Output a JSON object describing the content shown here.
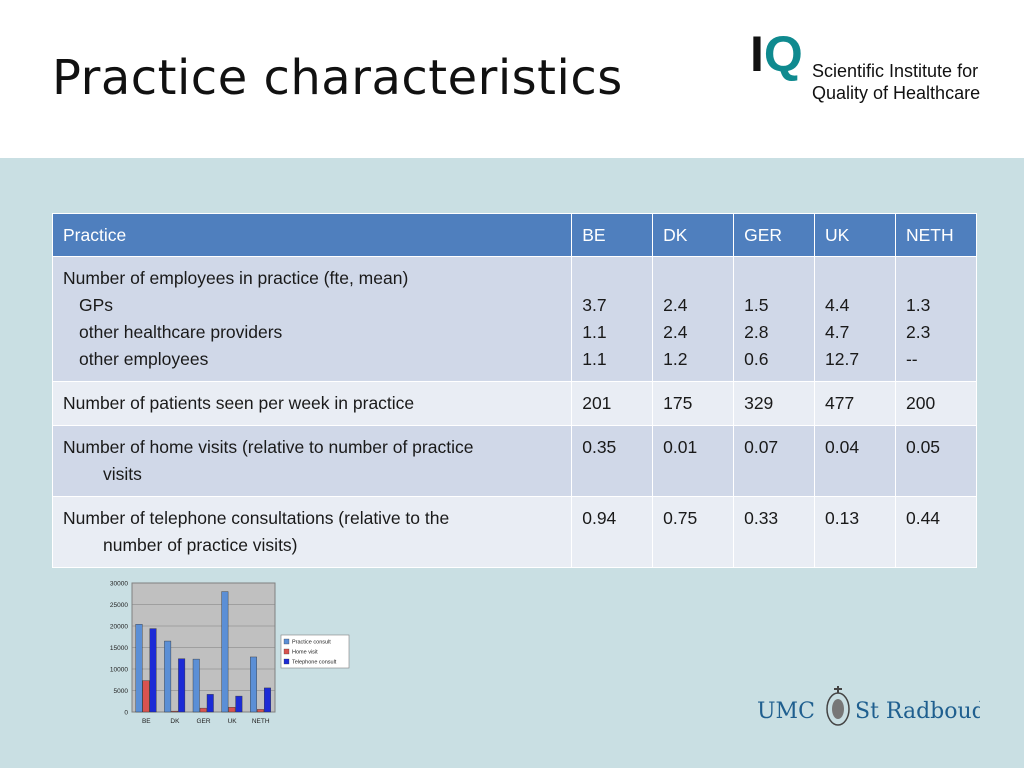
{
  "slide": {
    "title": "Practice characteristics"
  },
  "logo": {
    "mark_left": "I",
    "mark_right": "Q",
    "line1": "Scientific Institute for",
    "line2": "Quality of Healthcare"
  },
  "table": {
    "headers": [
      "Practice",
      "BE",
      "DK",
      "GER",
      "UK",
      "NETH"
    ],
    "row1": {
      "label": "Number of employees in practice (fte, mean)",
      "sub": [
        "GPs",
        "other healthcare providers",
        "other employees"
      ],
      "values": [
        [
          "3.7",
          "1.1",
          "1.1"
        ],
        [
          "2.4",
          "2.4",
          "1.2"
        ],
        [
          "1.5",
          "2.8",
          "0.6"
        ],
        [
          "4.4",
          "4.7",
          "12.7"
        ],
        [
          "1.3",
          "2.3",
          "--"
        ]
      ]
    },
    "row2": {
      "label": "Number of patients seen per week in practice",
      "values": [
        "201",
        "175",
        "329",
        "477",
        "200"
      ]
    },
    "row3": {
      "label_line1": "Number of home visits (relative to number of practice",
      "label_line2": "visits",
      "values": [
        "0.35",
        "0.01",
        "0.07",
        "0.04",
        "0.05"
      ]
    },
    "row4": {
      "label_line1": "Number of telephone consultations (relative to the",
      "label_line2": "number of practice visits)",
      "values": [
        "0.94",
        "0.75",
        "0.33",
        "0.13",
        "0.44"
      ]
    }
  },
  "chart_data": {
    "type": "bar",
    "categories": [
      "BE",
      "DK",
      "GER",
      "UK",
      "NETH"
    ],
    "series": [
      {
        "name": "Practice consult",
        "values": [
          20400,
          16500,
          12300,
          28000,
          12800
        ],
        "color": "#5b8fd6"
      },
      {
        "name": "Home visit",
        "values": [
          7300,
          200,
          900,
          1100,
          600
        ],
        "color": "#d9534f"
      },
      {
        "name": "Telephone consult",
        "values": [
          19400,
          12400,
          4100,
          3700,
          5600
        ],
        "color": "#1c2bd6"
      }
    ],
    "ylim": [
      0,
      30000
    ],
    "yticks": [
      "0",
      "5000",
      "10000",
      "15000",
      "20000",
      "25000",
      "30000"
    ],
    "grid": true,
    "legend": "right"
  },
  "footer_logo": {
    "left": "UMC",
    "right": "St Radboud"
  }
}
